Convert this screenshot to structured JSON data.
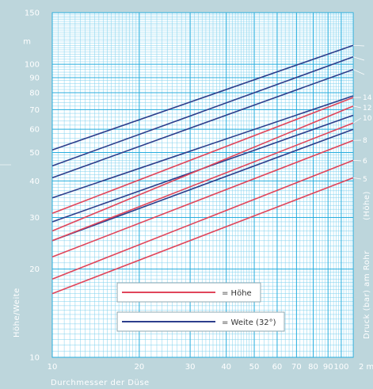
{
  "chart_data": {
    "type": "line",
    "xlabel": "Durchmesser der Düse",
    "ylabel": "Höhe/Weite",
    "right_label_top": "(Höhe)",
    "right_label_bottom": "Druck (bar) am Rohr",
    "xscale": "log",
    "yscale": "log",
    "xlim": [
      10,
      110
    ],
    "ylim": [
      10,
      150
    ],
    "x_ticks": [
      10,
      20,
      30,
      40,
      50,
      60,
      70,
      80,
      90,
      100
    ],
    "x_tick_labels": [
      "10",
      "20",
      "30",
      "40",
      "50",
      "60",
      "70",
      "80",
      "90",
      "100"
    ],
    "x_extra_label": "2 m",
    "y_ticks": [
      10,
      20,
      30,
      40,
      50,
      60,
      70,
      80,
      90,
      100,
      150
    ],
    "y_tick_labels": [
      "10",
      "20",
      "30",
      "40",
      "50",
      "60",
      "70",
      "80",
      "90",
      "100",
      "150"
    ],
    "y_extra_label": "m",
    "grid": true,
    "legend": {
      "position": "bottom-center",
      "items": [
        {
          "label": "= Höhe",
          "color": "#e0455a"
        },
        {
          "label": "= Weite (32°)",
          "color": "#2d3e8c"
        }
      ]
    },
    "pressure_labels": [
      "14",
      "12",
      "10",
      "8",
      "6",
      "5"
    ],
    "series": [
      {
        "type": "weite",
        "color": "#2d3e8c",
        "x": [
          10,
          110
        ],
        "y": [
          51,
          116
        ]
      },
      {
        "type": "weite",
        "color": "#2d3e8c",
        "x": [
          10,
          110
        ],
        "y": [
          45,
          106
        ]
      },
      {
        "type": "weite",
        "color": "#2d3e8c",
        "x": [
          10,
          110
        ],
        "y": [
          41,
          96
        ]
      },
      {
        "type": "weite",
        "color": "#2d3e8c",
        "x": [
          10,
          110
        ],
        "y": [
          35,
          78
        ]
      },
      {
        "type": "weite",
        "color": "#2d3e8c",
        "x": [
          10,
          110
        ],
        "y": [
          29,
          67
        ]
      },
      {
        "type": "weite",
        "color": "#2d3e8c",
        "x": [
          10,
          110
        ],
        "y": [
          25,
          60
        ]
      },
      {
        "type": "hoehe",
        "color": "#e0455a",
        "x": [
          10,
          110
        ],
        "y": [
          31,
          77
        ]
      },
      {
        "type": "hoehe",
        "color": "#e0455a",
        "x": [
          10,
          110
        ],
        "y": [
          27,
          72
        ]
      },
      {
        "type": "hoehe",
        "color": "#e0455a",
        "x": [
          10,
          110
        ],
        "y": [
          25,
          63
        ]
      },
      {
        "type": "hoehe",
        "color": "#e0455a",
        "x": [
          10,
          110
        ],
        "y": [
          22,
          55
        ]
      },
      {
        "type": "hoehe",
        "color": "#e0455a",
        "x": [
          10,
          110
        ],
        "y": [
          18.5,
          47
        ]
      },
      {
        "type": "hoehe",
        "color": "#e0455a",
        "x": [
          10,
          110
        ],
        "y": [
          16.5,
          41
        ]
      }
    ]
  },
  "colors": {
    "background": "#bdd6dc",
    "plot_bg": "#ffffff",
    "grid_major": "#28aede",
    "grid_minor": "#7fd0ee",
    "hoehe": "#e0455a",
    "weite": "#2d3e8c"
  }
}
